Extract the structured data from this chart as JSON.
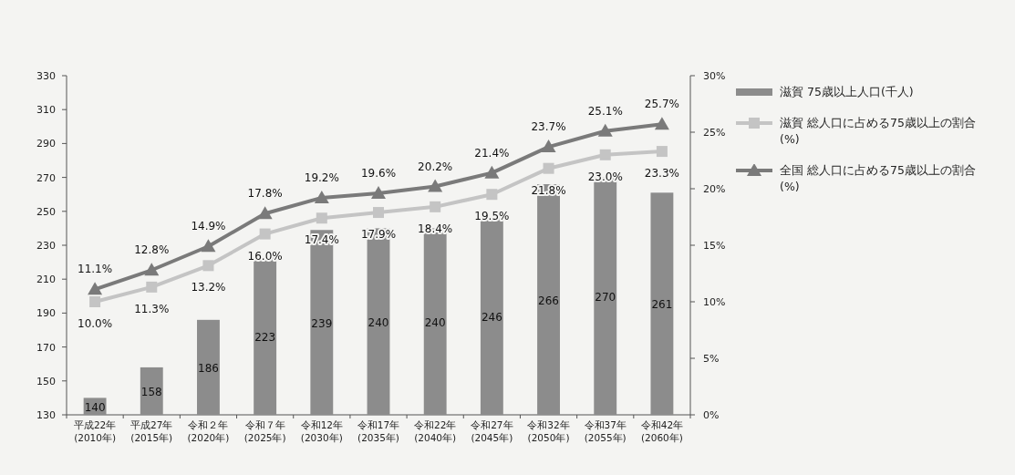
{
  "chart_data": {
    "type": "bar",
    "categories": [
      "平成22年\n(2010年)",
      "平成27年\n(2015年)",
      "令和２年\n(2020年)",
      "令和７年\n(2025年)",
      "令和12年\n(2030年)",
      "令和17年\n(2035年)",
      "令和22年\n(2040年)",
      "令和27年\n(2045年)",
      "令和32年\n(2050年)",
      "令和37年\n(2055年)",
      "令和42年\n(2060年)"
    ],
    "series": [
      {
        "name": "滋賀 75歳以上人口(千人)",
        "color": "#8c8c8c",
        "values": [
          140,
          158,
          186,
          223,
          239,
          240,
          240,
          246,
          266,
          270,
          261
        ],
        "value_labels": [
          "140",
          "158",
          "186",
          "223",
          "239",
          "240",
          "240",
          "246",
          "266",
          "270",
          "261"
        ]
      },
      {
        "name": "滋賀 総人口に占める75歳以上の割合(%)",
        "type": "line",
        "axis": "y2",
        "marker": "square",
        "color": "#c4c4c4",
        "values": [
          10.0,
          11.3,
          13.2,
          16.0,
          17.4,
          17.9,
          18.4,
          19.5,
          21.8,
          23.0,
          23.3
        ],
        "value_labels": [
          "10.0%",
          "11.3%",
          "13.2%",
          "16.0%",
          "17.4%",
          "17.9%",
          "18.4%",
          "19.5%",
          "21.8%",
          "23.0%",
          "23.3%"
        ]
      },
      {
        "name": "全国 総人口に占める75歳以上の割合(%)",
        "type": "line",
        "axis": "y2",
        "marker": "triangle",
        "color": "#7a7a7a",
        "values": [
          11.1,
          12.8,
          14.9,
          17.8,
          19.2,
          19.6,
          20.2,
          21.4,
          23.7,
          25.1,
          25.7
        ],
        "value_labels": [
          "11.1%",
          "12.8%",
          "14.9%",
          "17.8%",
          "19.2%",
          "19.6%",
          "20.2%",
          "21.4%",
          "23.7%",
          "25.1%",
          "25.7%"
        ]
      }
    ],
    "ylim": [
      130,
      330
    ],
    "yticks": [
      130,
      150,
      170,
      190,
      210,
      230,
      250,
      270,
      290,
      310,
      330
    ],
    "y2lim": [
      0,
      30
    ],
    "y2ticks": [
      {
        "value": 0,
        "label": "0%"
      },
      {
        "value": 5,
        "label": "5%"
      },
      {
        "value": 10,
        "label": "10%"
      },
      {
        "value": 15,
        "label": "15%"
      },
      {
        "value": 20,
        "label": "20%"
      },
      {
        "value": 25,
        "label": "25%"
      },
      {
        "value": 30,
        "label": "30%"
      }
    ],
    "legend": "right",
    "grid": false
  }
}
